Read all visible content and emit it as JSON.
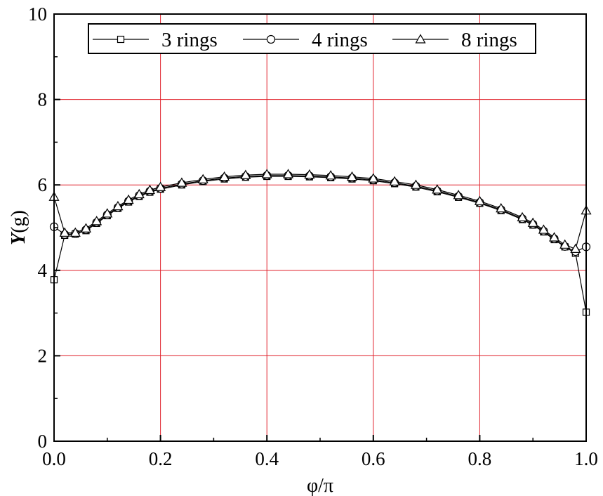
{
  "chart_data": {
    "type": "line",
    "xlabel": "φ/π",
    "ylabel_italic": "Y",
    "ylabel_suffix": "(g)",
    "xlim": [
      0,
      1
    ],
    "ylim": [
      0,
      10
    ],
    "xticks": [
      "0.0",
      "0.2",
      "0.4",
      "0.6",
      "0.8",
      "1.0"
    ],
    "yticks": [
      "0",
      "2",
      "4",
      "6",
      "8",
      "10"
    ],
    "grid": true,
    "grid_color": "#e0202a",
    "legend_position": "top",
    "series": [
      {
        "name": "3 rings",
        "marker": "square",
        "x": [
          0.0,
          0.02,
          0.04,
          0.06,
          0.08,
          0.1,
          0.12,
          0.14,
          0.16,
          0.18,
          0.2,
          0.24,
          0.28,
          0.32,
          0.36,
          0.4,
          0.44,
          0.48,
          0.52,
          0.56,
          0.6,
          0.64,
          0.68,
          0.72,
          0.76,
          0.8,
          0.84,
          0.88,
          0.9,
          0.92,
          0.94,
          0.96,
          0.98,
          1.0
        ],
        "y": [
          3.78,
          4.82,
          4.85,
          4.93,
          5.1,
          5.28,
          5.45,
          5.6,
          5.73,
          5.83,
          5.9,
          6.0,
          6.08,
          6.14,
          6.18,
          6.2,
          6.2,
          6.19,
          6.17,
          6.14,
          6.1,
          6.03,
          5.95,
          5.84,
          5.71,
          5.57,
          5.4,
          5.19,
          5.06,
          4.9,
          4.72,
          4.55,
          4.4,
          3.02
        ]
      },
      {
        "name": "4 rings",
        "marker": "circle",
        "x": [
          0.0,
          0.02,
          0.04,
          0.06,
          0.08,
          0.1,
          0.12,
          0.14,
          0.16,
          0.18,
          0.2,
          0.24,
          0.28,
          0.32,
          0.36,
          0.4,
          0.44,
          0.48,
          0.52,
          0.56,
          0.6,
          0.64,
          0.68,
          0.72,
          0.76,
          0.8,
          0.84,
          0.88,
          0.9,
          0.92,
          0.94,
          0.96,
          0.98,
          1.0
        ],
        "y": [
          5.02,
          4.84,
          4.86,
          4.95,
          5.12,
          5.3,
          5.47,
          5.62,
          5.75,
          5.85,
          5.92,
          6.02,
          6.1,
          6.16,
          6.2,
          6.22,
          6.22,
          6.21,
          6.19,
          6.16,
          6.12,
          6.05,
          5.97,
          5.86,
          5.73,
          5.59,
          5.42,
          5.21,
          5.08,
          4.92,
          4.74,
          4.56,
          4.44,
          4.55
        ]
      },
      {
        "name": "8 rings",
        "marker": "triangle",
        "x": [
          0.0,
          0.02,
          0.04,
          0.06,
          0.08,
          0.1,
          0.12,
          0.14,
          0.16,
          0.18,
          0.2,
          0.24,
          0.28,
          0.32,
          0.36,
          0.4,
          0.44,
          0.48,
          0.52,
          0.56,
          0.6,
          0.64,
          0.68,
          0.72,
          0.76,
          0.8,
          0.84,
          0.88,
          0.9,
          0.92,
          0.94,
          0.96,
          0.98,
          1.0
        ],
        "y": [
          5.72,
          4.88,
          4.88,
          4.98,
          5.15,
          5.33,
          5.5,
          5.65,
          5.78,
          5.88,
          5.95,
          6.05,
          6.13,
          6.19,
          6.23,
          6.25,
          6.25,
          6.24,
          6.22,
          6.19,
          6.15,
          6.08,
          6.0,
          5.89,
          5.76,
          5.62,
          5.45,
          5.24,
          5.11,
          4.95,
          4.77,
          4.6,
          4.5,
          5.4
        ]
      }
    ]
  }
}
